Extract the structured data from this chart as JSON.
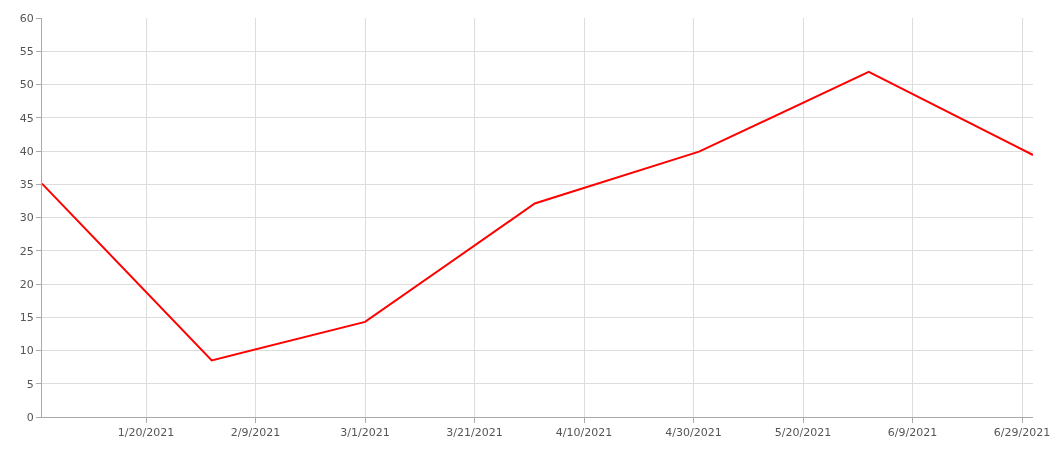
{
  "chart_data": {
    "type": "line",
    "x": [
      "2021-01-01",
      "2021-02-01",
      "2021-03-01",
      "2021-04-01",
      "2021-05-01",
      "2021-06-01",
      "2021-07-01"
    ],
    "series": [
      {
        "color": "#ff0000",
        "values": [
          35.1,
          8.5,
          14.3,
          32.1,
          39.9,
          51.9,
          39.4
        ]
      }
    ],
    "xlim": [
      "2021-01-01",
      "2021-07-01"
    ],
    "xticks": [
      {
        "value": "2021-01-20",
        "label": "1/20/2021"
      },
      {
        "value": "2021-02-09",
        "label": "2/9/2021"
      },
      {
        "value": "2021-03-01",
        "label": "3/1/2021"
      },
      {
        "value": "2021-03-21",
        "label": "3/21/2021"
      },
      {
        "value": "2021-04-10",
        "label": "4/10/2021"
      },
      {
        "value": "2021-04-30",
        "label": "4/30/2021"
      },
      {
        "value": "2021-05-20",
        "label": "5/20/2021"
      },
      {
        "value": "2021-06-09",
        "label": "6/9/2021"
      },
      {
        "value": "2021-06-29",
        "label": "6/29/2021"
      }
    ],
    "ylim": [
      0,
      60
    ],
    "yticks": [
      0,
      5,
      10,
      15,
      20,
      25,
      30,
      35,
      40,
      45,
      50,
      55,
      60
    ],
    "grid": true,
    "marker": "none",
    "line_style": "solid"
  }
}
